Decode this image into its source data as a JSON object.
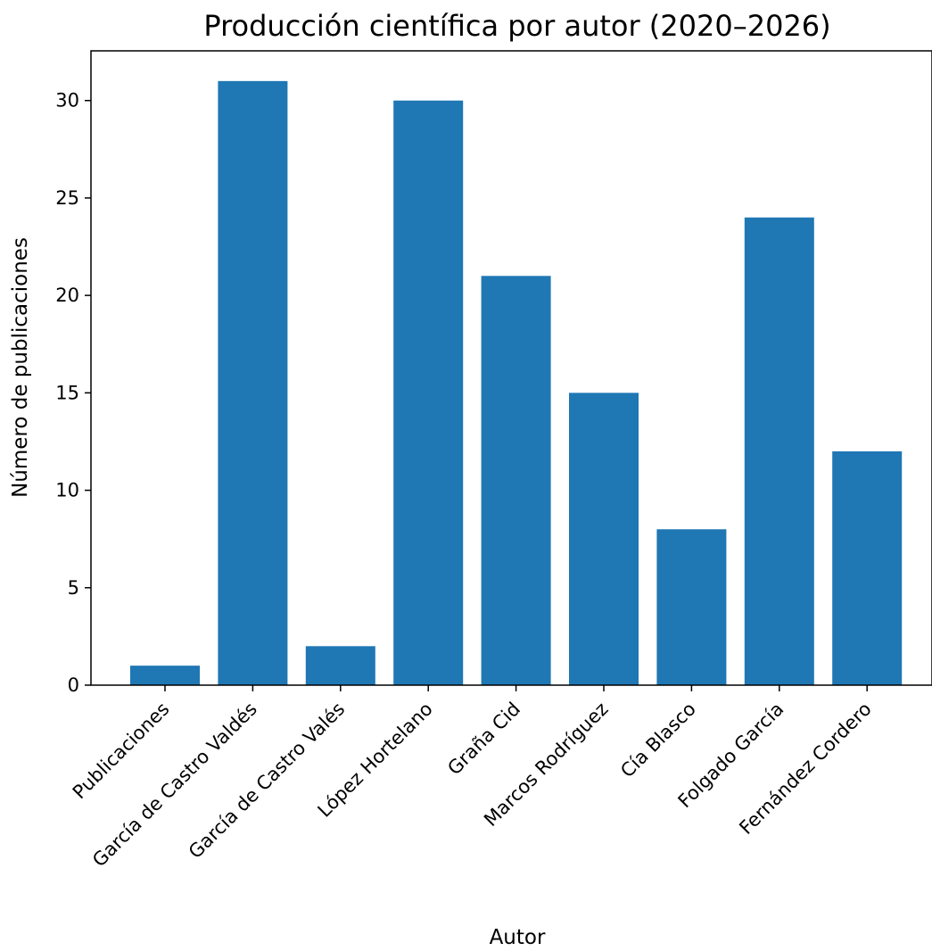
{
  "chart_data": {
    "type": "bar",
    "title": "Producción científica por autor (2020–2026)",
    "xlabel": "Autor",
    "ylabel": "Número de publicaciones",
    "categories": [
      "Publicaciones",
      "García de Castro Valdés",
      "García de Castro Valés",
      "López Hortelano",
      "Graña Cid",
      "Marcos Rodríguez",
      "Cía Blasco",
      "Folgado García",
      "Fernández Cordero"
    ],
    "values": [
      1,
      31,
      2,
      30,
      21,
      15,
      8,
      24,
      12
    ],
    "ylim": [
      0,
      32.55
    ],
    "yticks": [
      0,
      5,
      10,
      15,
      20,
      25,
      30
    ],
    "bar_color": "#1f77b4",
    "grid": false
  }
}
